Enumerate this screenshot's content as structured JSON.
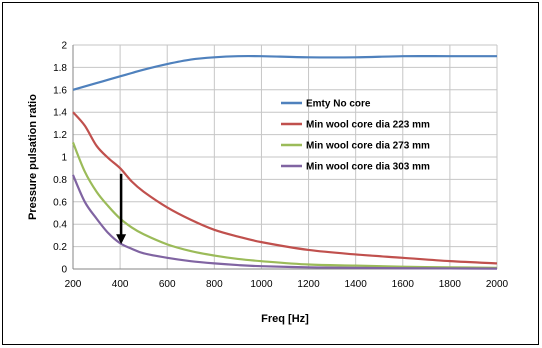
{
  "chart_data": {
    "type": "line",
    "title": "",
    "xlabel": "Freq [Hz]",
    "ylabel": "Pressure pulsation ratio",
    "xlim": [
      200,
      2000
    ],
    "ylim": [
      0,
      2
    ],
    "x_ticks": [
      "200",
      "400",
      "600",
      "800",
      "1000",
      "1200",
      "1400",
      "1600",
      "1800",
      "2000"
    ],
    "y_ticks": [
      "0",
      "0.2",
      "0.4",
      "0.6",
      "0.8",
      "1",
      "1.2",
      "1.4",
      "1.6",
      "1.8",
      "2"
    ],
    "grid": true,
    "legend_position": "center-right",
    "annotation": "downward arrow at 400 Hz from 0.85 to 0.23",
    "x": [
      200,
      250,
      300,
      350,
      400,
      450,
      500,
      600,
      700,
      800,
      900,
      1000,
      1200,
      1400,
      1600,
      1800,
      2000
    ],
    "series": [
      {
        "name": "Emty No core",
        "color": "#4F81BD",
        "values": [
          1.6,
          1.63,
          1.66,
          1.69,
          1.72,
          1.75,
          1.78,
          1.83,
          1.87,
          1.89,
          1.9,
          1.9,
          1.89,
          1.89,
          1.9,
          1.9,
          1.9
        ]
      },
      {
        "name": "Min wool core dia 223 mm",
        "color": "#C0504D",
        "values": [
          1.4,
          1.28,
          1.1,
          0.99,
          0.9,
          0.78,
          0.69,
          0.55,
          0.44,
          0.35,
          0.29,
          0.24,
          0.17,
          0.13,
          0.1,
          0.07,
          0.05
        ]
      },
      {
        "name": "Min wool core dia 273 mm",
        "color": "#9BBB59",
        "values": [
          1.13,
          0.87,
          0.69,
          0.56,
          0.45,
          0.37,
          0.31,
          0.22,
          0.16,
          0.12,
          0.09,
          0.07,
          0.04,
          0.03,
          0.02,
          0.015,
          0.01
        ]
      },
      {
        "name": "Min wool core dia 303 mm",
        "color": "#8064A2",
        "values": [
          0.84,
          0.6,
          0.45,
          0.32,
          0.23,
          0.18,
          0.14,
          0.1,
          0.07,
          0.05,
          0.035,
          0.025,
          0.015,
          0.01,
          0.007,
          0.005,
          0.003
        ]
      }
    ]
  }
}
